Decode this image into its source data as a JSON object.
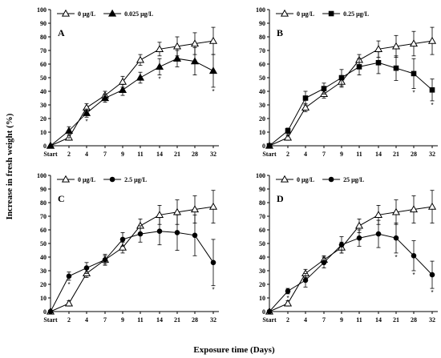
{
  "figure": {
    "xlabel": "Exposure time (Days)",
    "ylabel": "Increase in fresh weight (%)"
  },
  "chart_data": [
    {
      "type": "line",
      "panel": "A",
      "categories": [
        "Start",
        "2",
        "4",
        "7",
        "9",
        "11",
        "14",
        "21",
        "28",
        "32"
      ],
      "ylim": [
        0,
        100
      ],
      "yticks": [
        0,
        10,
        20,
        30,
        40,
        50,
        60,
        70,
        80,
        90,
        100
      ],
      "legend_position": "top-left",
      "grid": false,
      "series": [
        {
          "name": "0 μg/L",
          "marker": "open-triangle",
          "values": [
            0,
            6,
            28,
            37,
            47,
            63,
            71,
            73,
            75,
            77
          ],
          "errors": [
            0,
            2,
            3,
            3,
            4,
            4,
            5,
            7,
            8,
            10
          ]
        },
        {
          "name": "0.025 μg/L",
          "marker": "filled-triangle",
          "values": [
            0,
            11,
            24,
            35,
            41,
            50,
            58,
            64,
            62,
            55
          ],
          "errors": [
            0,
            3,
            3,
            3,
            4,
            4,
            6,
            6,
            10,
            12
          ]
        }
      ],
      "significance": [
        {
          "category": "2",
          "series": 1,
          "text": "*"
        },
        {
          "category": "4",
          "series": 1,
          "text": "*"
        },
        {
          "category": "14",
          "series": 1,
          "text": "*"
        },
        {
          "category": "32",
          "series": 1,
          "text": "*"
        }
      ]
    },
    {
      "type": "line",
      "panel": "B",
      "categories": [
        "Start",
        "2",
        "4",
        "7",
        "9",
        "11",
        "14",
        "21",
        "28",
        "32"
      ],
      "ylim": [
        0,
        100
      ],
      "yticks": [
        0,
        10,
        20,
        30,
        40,
        50,
        60,
        70,
        80,
        90,
        100
      ],
      "legend_position": "top-left",
      "grid": false,
      "series": [
        {
          "name": "0 μg/L",
          "marker": "open-triangle",
          "values": [
            0,
            6,
            28,
            38,
            47,
            63,
            71,
            73,
            75,
            77
          ],
          "errors": [
            0,
            2,
            3,
            3,
            4,
            4,
            6,
            8,
            9,
            10
          ]
        },
        {
          "name": "0.25 μg/L",
          "marker": "filled-square",
          "values": [
            0,
            11,
            35,
            42,
            50,
            58,
            61,
            57,
            53,
            41
          ],
          "errors": [
            0,
            2,
            5,
            4,
            6,
            6,
            8,
            9,
            11,
            8
          ]
        }
      ],
      "significance": [
        {
          "category": "2",
          "series": 1,
          "text": "*"
        },
        {
          "category": "28",
          "series": 1,
          "text": "*"
        },
        {
          "category": "32",
          "series": 1,
          "text": "*"
        }
      ]
    },
    {
      "type": "line",
      "panel": "C",
      "categories": [
        "Start",
        "2",
        "4",
        "7",
        "9",
        "11",
        "14",
        "21",
        "28",
        "32"
      ],
      "ylim": [
        0,
        100
      ],
      "yticks": [
        0,
        10,
        20,
        30,
        40,
        50,
        60,
        70,
        80,
        90,
        100
      ],
      "legend_position": "top-left",
      "grid": false,
      "series": [
        {
          "name": "0 μg/L",
          "marker": "open-triangle",
          "values": [
            0,
            6,
            28,
            38,
            47,
            63,
            71,
            73,
            75,
            77
          ],
          "errors": [
            0,
            2,
            3,
            3,
            4,
            5,
            7,
            9,
            10,
            12
          ]
        },
        {
          "name": "2.5 μg/L",
          "marker": "filled-circle",
          "values": [
            0,
            26,
            32,
            38,
            53,
            57,
            59,
            58,
            56,
            36
          ],
          "errors": [
            0,
            3,
            4,
            4,
            5,
            6,
            10,
            13,
            15,
            17
          ]
        }
      ],
      "significance": [
        {
          "category": "2",
          "series": 1,
          "text": "*"
        },
        {
          "category": "32",
          "series": 1,
          "text": "*"
        }
      ]
    },
    {
      "type": "line",
      "panel": "D",
      "categories": [
        "Start",
        "2",
        "4",
        "7",
        "9",
        "11",
        "14",
        "21",
        "28",
        "32"
      ],
      "ylim": [
        0,
        100
      ],
      "yticks": [
        0,
        10,
        20,
        30,
        40,
        50,
        60,
        70,
        80,
        90,
        100
      ],
      "legend_position": "top-left",
      "grid": false,
      "series": [
        {
          "name": "0 μg/L",
          "marker": "open-triangle",
          "values": [
            0,
            6,
            28,
            38,
            47,
            63,
            71,
            73,
            75,
            77
          ],
          "errors": [
            0,
            2,
            3,
            3,
            4,
            5,
            7,
            9,
            10,
            12
          ]
        },
        {
          "name": "25 μg/L",
          "marker": "filled-circle",
          "values": [
            0,
            15,
            23,
            36,
            49,
            54,
            57,
            54,
            41,
            27
          ],
          "errors": [
            0,
            2,
            5,
            4,
            6,
            6,
            10,
            11,
            11,
            10
          ]
        }
      ],
      "significance": [
        {
          "category": "2",
          "series": 1,
          "text": "*"
        },
        {
          "category": "21",
          "series": 1,
          "text": "*"
        },
        {
          "category": "28",
          "series": 1,
          "text": "*"
        },
        {
          "category": "32",
          "series": 1,
          "text": "*"
        }
      ]
    }
  ]
}
